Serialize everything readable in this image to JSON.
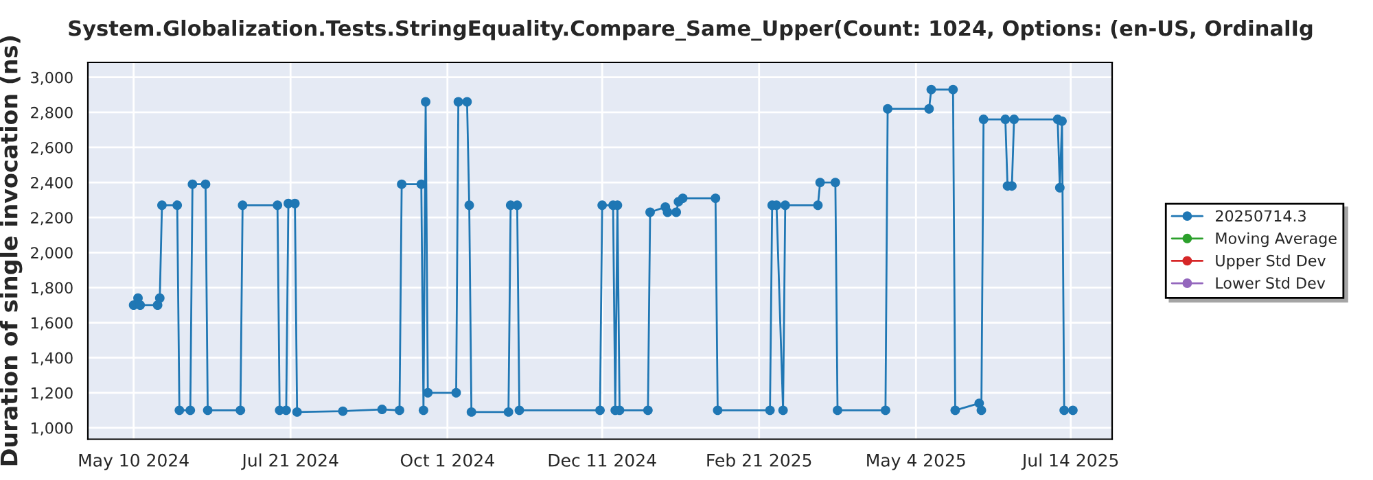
{
  "chart_data": {
    "type": "line",
    "title": "System.Globalization.Tests.StringEquality.Compare_Same_Upper(Count: 1024, Options: (en-US, OrdinalIg",
    "ylabel": "Duration of single invocation (ns)",
    "x": [
      "2024-05-10",
      "2024-05-12",
      "2024-05-13",
      "2024-05-21",
      "2024-05-22",
      "2024-05-23",
      "2024-05-30",
      "2024-05-31",
      "2024-06-05",
      "2024-06-06",
      "2024-06-12",
      "2024-06-13",
      "2024-06-28",
      "2024-06-29",
      "2024-07-15",
      "2024-07-16",
      "2024-07-19",
      "2024-07-20",
      "2024-07-23",
      "2024-07-24",
      "2024-08-14",
      "2024-09-01",
      "2024-09-09",
      "2024-09-10",
      "2024-09-19",
      "2024-09-20",
      "2024-09-21",
      "2024-09-22",
      "2024-10-05",
      "2024-10-06",
      "2024-10-10",
      "2024-10-11",
      "2024-10-12",
      "2024-10-29",
      "2024-10-30",
      "2024-11-02",
      "2024-11-03",
      "2024-12-10",
      "2024-12-11",
      "2024-12-16",
      "2024-12-17",
      "2024-12-18",
      "2024-12-19",
      "2025-01-01",
      "2025-01-02",
      "2025-01-09",
      "2025-01-10",
      "2025-01-14",
      "2025-01-15",
      "2025-01-17",
      "2025-02-01",
      "2025-02-02",
      "2025-02-26",
      "2025-02-27",
      "2025-03-01",
      "2025-03-04",
      "2025-03-05",
      "2025-03-20",
      "2025-03-21",
      "2025-03-28",
      "2025-03-29",
      "2025-04-20",
      "2025-04-21",
      "2025-05-10",
      "2025-05-11",
      "2025-05-21",
      "2025-05-22",
      "2025-06-02",
      "2025-06-03",
      "2025-06-04",
      "2025-06-14",
      "2025-06-15",
      "2025-06-17",
      "2025-06-18",
      "2025-07-08",
      "2025-07-09",
      "2025-07-10",
      "2025-07-11",
      "2025-07-15"
    ],
    "series": [
      {
        "name": "20250714.3",
        "color": "#1f77b4",
        "values": [
          1700,
          1740,
          1700,
          1700,
          1740,
          2270,
          2270,
          1100,
          1100,
          2390,
          2390,
          1100,
          1100,
          2270,
          2270,
          1100,
          1100,
          2280,
          2280,
          1090,
          1095,
          1105,
          1100,
          2390,
          2390,
          1100,
          2860,
          1200,
          1200,
          2860,
          2860,
          2270,
          1090,
          1090,
          2270,
          2270,
          1100,
          1100,
          2270,
          2270,
          1100,
          2270,
          1100,
          1100,
          2230,
          2260,
          2230,
          2230,
          2290,
          2310,
          2310,
          1100,
          1100,
          2270,
          2270,
          1100,
          2270,
          2270,
          2400,
          2400,
          1100,
          1100,
          2820,
          2820,
          2930,
          2930,
          1100,
          1140,
          1100,
          2760,
          2760,
          2380,
          2380,
          2760,
          2760,
          2370,
          2750,
          1100,
          1100
        ]
      },
      {
        "name": "Moving Average",
        "color": "#2ca02c",
        "values": [
          null,
          null,
          null,
          null,
          null,
          null,
          null,
          null,
          null,
          null,
          null,
          null,
          null,
          null,
          null,
          null,
          null,
          null,
          null,
          null,
          null,
          null,
          null,
          null,
          null,
          null,
          null,
          null,
          null,
          null,
          null,
          null,
          null,
          null,
          null,
          null,
          null,
          null,
          null,
          null,
          null,
          null,
          null,
          null,
          null,
          null,
          null,
          null,
          null,
          null,
          null,
          null,
          null,
          null,
          null,
          null,
          null,
          null,
          null,
          null,
          null,
          null,
          null,
          null,
          null,
          null,
          null,
          null,
          null,
          null,
          null,
          null,
          null,
          null,
          null,
          null,
          null,
          null,
          null
        ]
      },
      {
        "name": "Upper Std Dev",
        "color": "#d62728",
        "values": [
          null,
          null,
          null,
          null,
          null,
          null,
          null,
          null,
          null,
          null,
          null,
          null,
          null,
          null,
          null,
          null,
          null,
          null,
          null,
          null,
          null,
          null,
          null,
          null,
          null,
          null,
          null,
          null,
          null,
          null,
          null,
          null,
          null,
          null,
          null,
          null,
          null,
          null,
          null,
          null,
          null,
          null,
          null,
          null,
          null,
          null,
          null,
          null,
          null,
          null,
          null,
          null,
          null,
          null,
          null,
          null,
          null,
          null,
          null,
          null,
          null,
          null,
          null,
          null,
          null,
          null,
          null,
          null,
          null,
          null,
          null,
          null,
          null,
          null,
          null,
          null,
          null,
          null,
          null
        ]
      },
      {
        "name": "Lower Std Dev",
        "color": "#9467bd",
        "values": [
          null,
          null,
          null,
          null,
          null,
          null,
          null,
          null,
          null,
          null,
          null,
          null,
          null,
          null,
          null,
          null,
          null,
          null,
          null,
          null,
          null,
          null,
          null,
          null,
          null,
          null,
          null,
          null,
          null,
          null,
          null,
          null,
          null,
          null,
          null,
          null,
          null,
          null,
          null,
          null,
          null,
          null,
          null,
          null,
          null,
          null,
          null,
          null,
          null,
          null,
          null,
          null,
          null,
          null,
          null,
          null,
          null,
          null,
          null,
          null,
          null,
          null,
          null,
          null,
          null,
          null,
          null,
          null,
          null,
          null,
          null,
          null,
          null,
          null,
          null,
          null,
          null,
          null,
          null
        ]
      }
    ],
    "xlim": [
      "2024-04-19",
      "2025-08-02"
    ],
    "xticks": [
      {
        "value": "2024-05-10",
        "label": "May 10 2024"
      },
      {
        "value": "2024-07-21",
        "label": "Jul 21 2024"
      },
      {
        "value": "2024-10-01",
        "label": "Oct 1 2024"
      },
      {
        "value": "2024-12-11",
        "label": "Dec 11 2024"
      },
      {
        "value": "2025-02-21",
        "label": "Feb 21 2025"
      },
      {
        "value": "2025-05-04",
        "label": "May 4 2025"
      },
      {
        "value": "2025-07-14",
        "label": "Jul 14 2025"
      }
    ],
    "ylim": [
      935,
      3085
    ],
    "yticks": [
      {
        "value": 1000,
        "label": "1,000"
      },
      {
        "value": 1200,
        "label": "1,200"
      },
      {
        "value": 1400,
        "label": "1,400"
      },
      {
        "value": 1600,
        "label": "1,600"
      },
      {
        "value": 1800,
        "label": "1,800"
      },
      {
        "value": 2000,
        "label": "2,000"
      },
      {
        "value": 2200,
        "label": "2,200"
      },
      {
        "value": 2400,
        "label": "2,400"
      },
      {
        "value": 2600,
        "label": "2,600"
      },
      {
        "value": 2800,
        "label": "2,800"
      },
      {
        "value": 3000,
        "label": "3,000"
      }
    ],
    "grid": true,
    "legend": "right",
    "marker": "circle",
    "line_style": "solid"
  }
}
